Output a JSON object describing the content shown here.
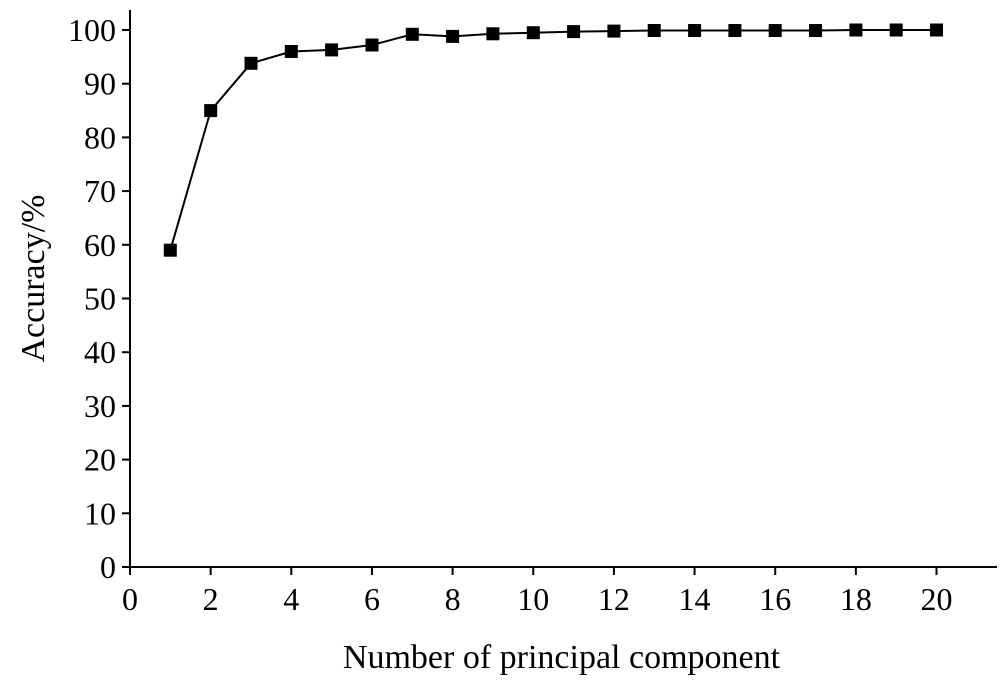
{
  "chart_data": {
    "type": "line",
    "title": "",
    "xlabel": "Number of principal component",
    "ylabel": "Accuracy/%",
    "xlim": [
      0,
      21.5
    ],
    "ylim": [
      0,
      100
    ],
    "xticks": [
      0,
      2,
      4,
      6,
      8,
      10,
      12,
      14,
      16,
      18,
      20
    ],
    "yticks": [
      0,
      10,
      20,
      30,
      40,
      50,
      60,
      70,
      80,
      90,
      100
    ],
    "grid": false,
    "legend": "none",
    "series": [
      {
        "marker": "square",
        "color": "#000000",
        "x": [
          1,
          2,
          3,
          4,
          5,
          6,
          7,
          8,
          9,
          10,
          11,
          12,
          13,
          14,
          15,
          16,
          17,
          18,
          19,
          20
        ],
        "y": [
          59,
          85,
          93.8,
          96,
          96.3,
          97.2,
          99.2,
          98.8,
          99.3,
          99.5,
          99.7,
          99.8,
          99.9,
          99.9,
          99.9,
          99.9,
          99.9,
          100,
          100,
          100
        ]
      }
    ]
  }
}
